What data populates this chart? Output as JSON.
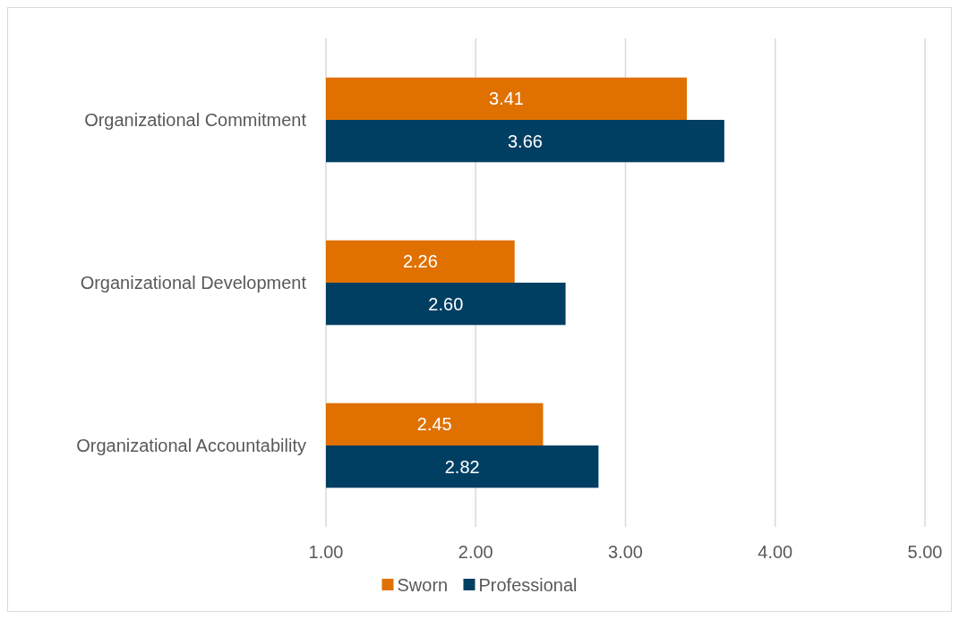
{
  "chart_data": {
    "type": "bar",
    "orientation": "horizontal",
    "categories": [
      "Organizational Commitment",
      "Organizational Development",
      "Organizational Accountability"
    ],
    "series": [
      {
        "name": "Sworn",
        "color": "#e07000",
        "values": [
          3.41,
          2.26,
          2.45
        ],
        "value_labels": [
          "3.41",
          "2.26",
          "2.45"
        ]
      },
      {
        "name": "Professional",
        "color": "#003f62",
        "values": [
          3.66,
          2.6,
          2.82
        ],
        "value_labels": [
          "3.66",
          "2.60",
          "2.82"
        ]
      }
    ],
    "xlim": [
      1,
      5
    ],
    "xticks": [
      {
        "value": 1,
        "label": "1.00"
      },
      {
        "value": 2,
        "label": "2.00"
      },
      {
        "value": 3,
        "label": "3.00"
      },
      {
        "value": 4,
        "label": "4.00"
      },
      {
        "value": 5,
        "label": "5.00"
      }
    ],
    "grid": "x",
    "legend": "bottom"
  }
}
